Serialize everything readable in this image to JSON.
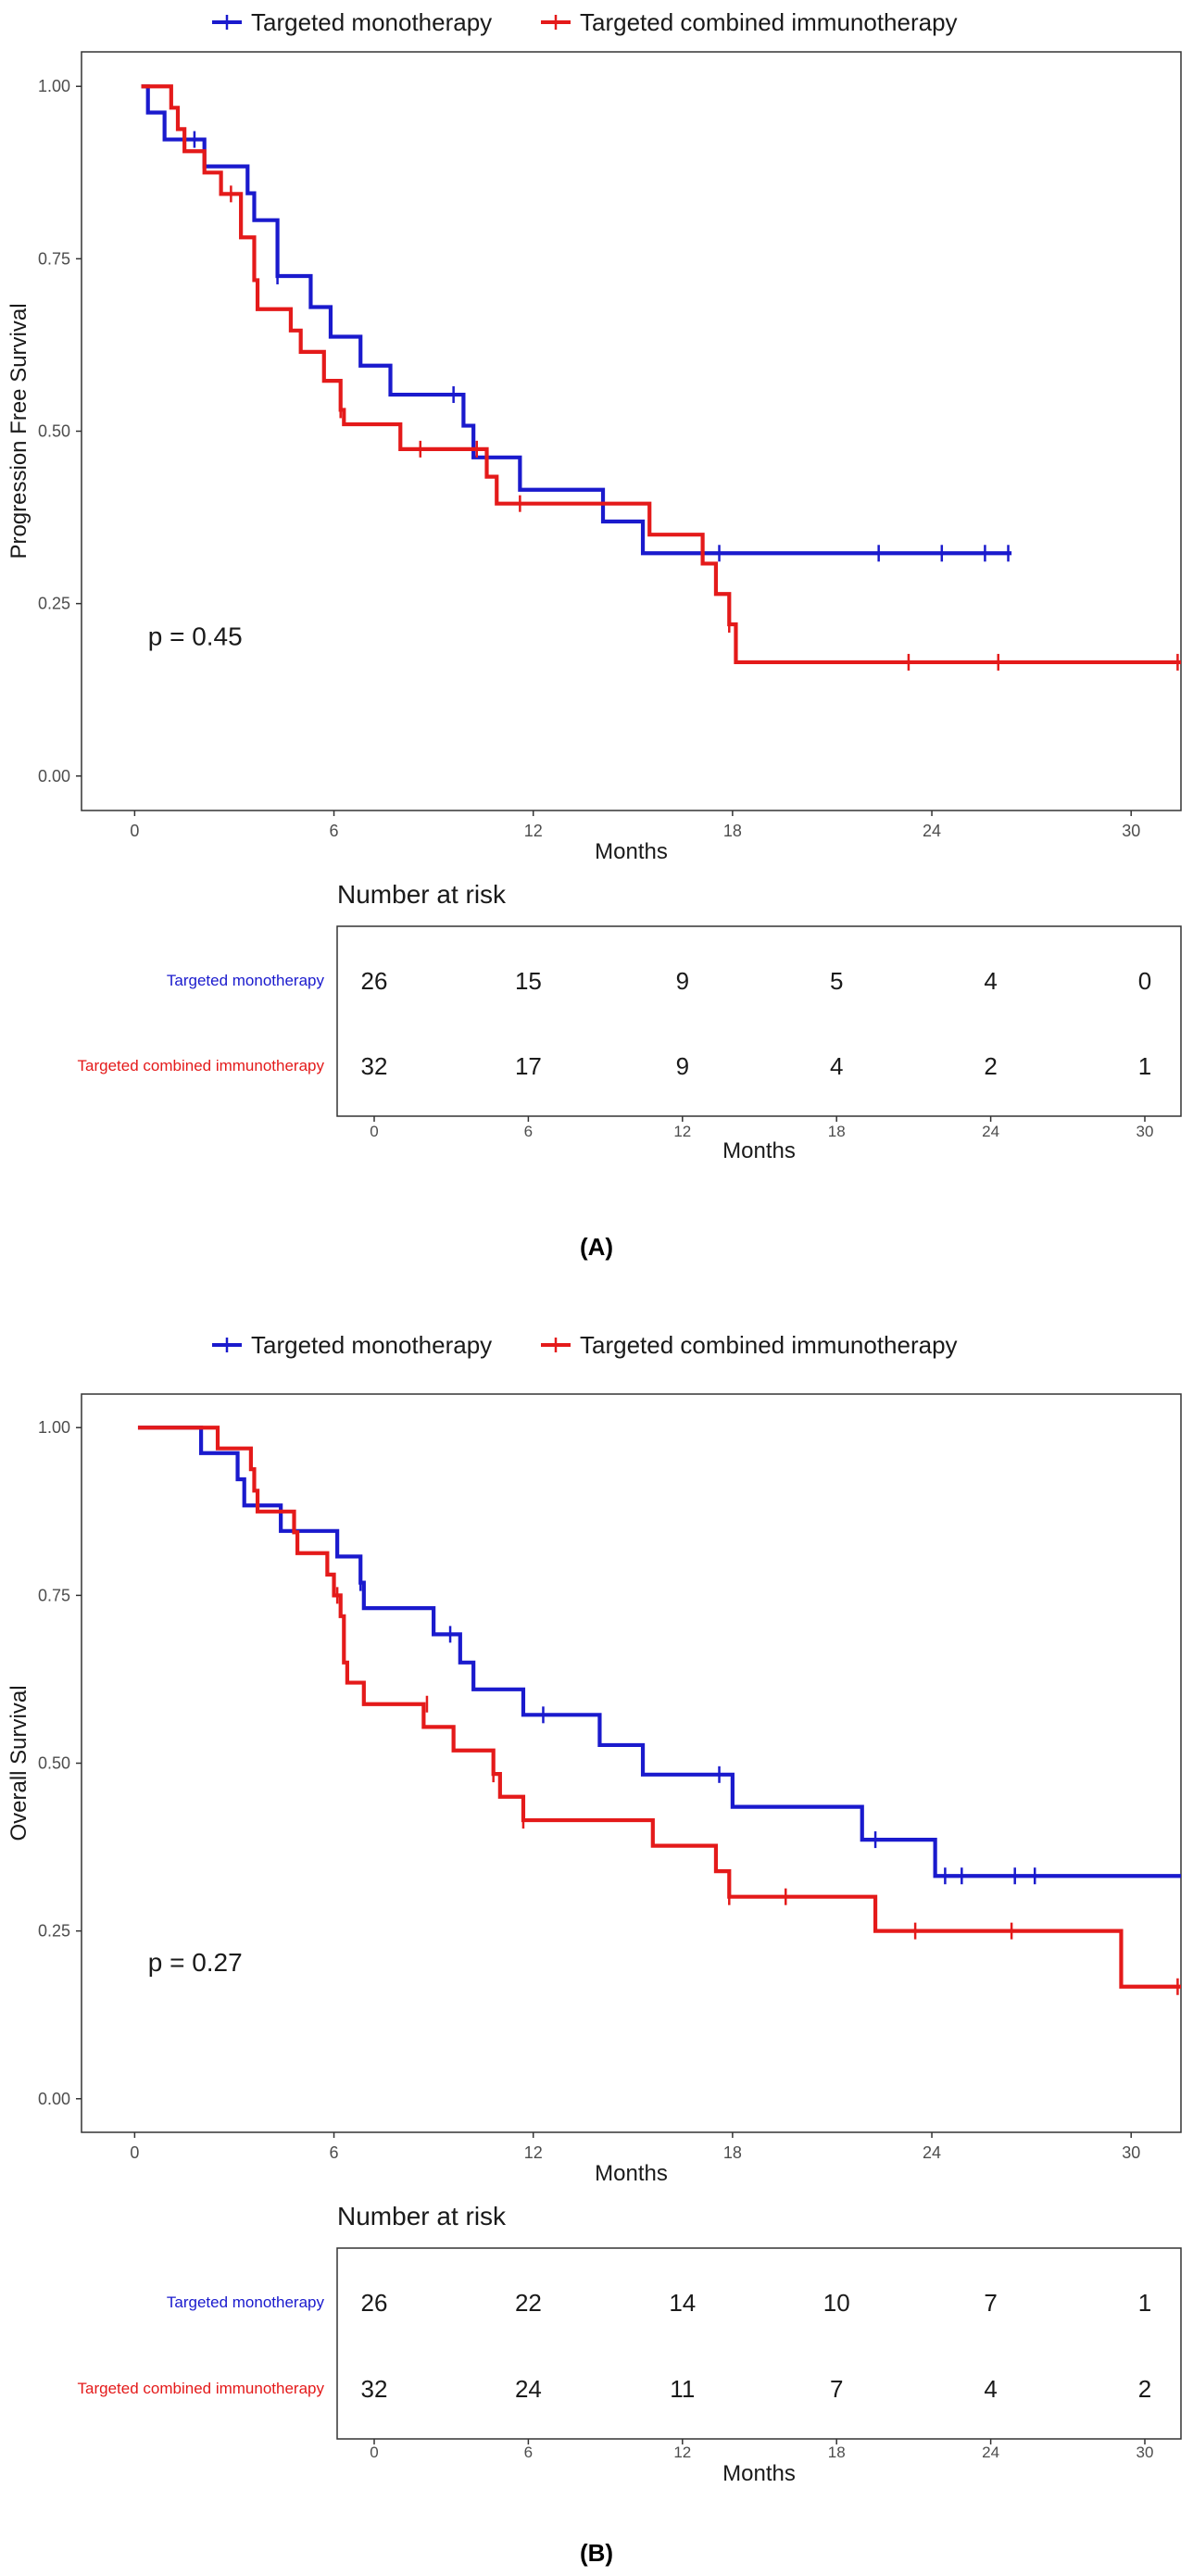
{
  "chart_data": [
    {
      "type": "line",
      "subtype": "kaplan-meier",
      "caption": "(A)",
      "xlabel": "Months",
      "ylabel": "Progression Free Survival",
      "xlim": [
        -1.6,
        31.5
      ],
      "ylim": [
        -0.05,
        1.05
      ],
      "xticks": [
        0,
        6,
        12,
        18,
        24,
        30
      ],
      "yticks": [
        0.0,
        0.25,
        0.5,
        0.75,
        1.0
      ],
      "ytick_labels": [
        "0.00",
        "0.25",
        "0.50",
        "0.75",
        "1.00"
      ],
      "grid": false,
      "legend_position": "top",
      "pvalue": "p = 0.45",
      "series": [
        {
          "name": "Targeted monotherapy",
          "color": "#1a1acd",
          "steps": [
            [
              0.2,
              1.0
            ],
            [
              0.4,
              0.962
            ],
            [
              0.9,
              0.923
            ],
            [
              2.1,
              0.884
            ],
            [
              3.4,
              0.845
            ],
            [
              3.6,
              0.806
            ],
            [
              4.3,
              0.725
            ],
            [
              5.3,
              0.68
            ],
            [
              5.9,
              0.637
            ],
            [
              6.8,
              0.595
            ],
            [
              7.7,
              0.553
            ],
            [
              9.9,
              0.508
            ],
            [
              10.2,
              0.462
            ],
            [
              11.6,
              0.415
            ],
            [
              14.1,
              0.369
            ],
            [
              15.3,
              0.323
            ],
            [
              26.4,
              0.323
            ]
          ],
          "censored": [
            [
              1.8,
              0.923
            ],
            [
              4.3,
              0.725
            ],
            [
              9.6,
              0.553
            ],
            [
              17.6,
              0.323
            ],
            [
              22.4,
              0.323
            ],
            [
              24.3,
              0.323
            ],
            [
              25.6,
              0.323
            ],
            [
              26.3,
              0.323
            ]
          ]
        },
        {
          "name": "Targeted combined immunotherapy",
          "color": "#e41a1a",
          "steps": [
            [
              0.2,
              1.0
            ],
            [
              1.1,
              0.969
            ],
            [
              1.3,
              0.938
            ],
            [
              1.5,
              0.906
            ],
            [
              2.1,
              0.875
            ],
            [
              2.6,
              0.844
            ],
            [
              3.2,
              0.781
            ],
            [
              3.6,
              0.719
            ],
            [
              3.7,
              0.677
            ],
            [
              4.7,
              0.646
            ],
            [
              5.0,
              0.615
            ],
            [
              5.7,
              0.573
            ],
            [
              6.2,
              0.531
            ],
            [
              6.3,
              0.51
            ],
            [
              8.0,
              0.474
            ],
            [
              10.6,
              0.434
            ],
            [
              10.9,
              0.395
            ],
            [
              15.5,
              0.35
            ],
            [
              17.1,
              0.308
            ],
            [
              17.5,
              0.264
            ],
            [
              17.9,
              0.22
            ],
            [
              18.1,
              0.165
            ],
            [
              31.5,
              0.165
            ]
          ],
          "censored": [
            [
              2.9,
              0.844
            ],
            [
              6.2,
              0.531
            ],
            [
              8.6,
              0.474
            ],
            [
              10.3,
              0.474
            ],
            [
              11.6,
              0.395
            ],
            [
              17.9,
              0.22
            ],
            [
              23.3,
              0.165
            ],
            [
              26.0,
              0.165
            ],
            [
              31.4,
              0.165
            ]
          ]
        }
      ],
      "risk_table": {
        "title": "Number at risk",
        "xlabel": "Months",
        "times": [
          0,
          6,
          12,
          18,
          24,
          30
        ],
        "rows": [
          {
            "label": "Targeted monotherapy",
            "color": "#1a1acd",
            "values": [
              "26",
              "15",
              "9",
              "5",
              "4",
              "0"
            ]
          },
          {
            "label": "Targeted combined immunotherapy",
            "color": "#e41a1a",
            "values": [
              "32",
              "17",
              "9",
              "4",
              "2",
              "1"
            ]
          }
        ]
      }
    },
    {
      "type": "line",
      "subtype": "kaplan-meier",
      "caption": "(B)",
      "xlabel": "Months",
      "ylabel": "Overall Survival",
      "xlim": [
        -1.6,
        31.5
      ],
      "ylim": [
        -0.05,
        1.05
      ],
      "xticks": [
        0,
        6,
        12,
        18,
        24,
        30
      ],
      "yticks": [
        0.0,
        0.25,
        0.5,
        0.75,
        1.0
      ],
      "ytick_labels": [
        "0.00",
        "0.25",
        "0.50",
        "0.75",
        "1.00"
      ],
      "grid": false,
      "legend_position": "top",
      "pvalue": "p = 0.27",
      "series": [
        {
          "name": "Targeted monotherapy",
          "color": "#1a1acd",
          "steps": [
            [
              0.1,
              1.0
            ],
            [
              2.0,
              0.962
            ],
            [
              3.1,
              0.923
            ],
            [
              3.3,
              0.884
            ],
            [
              4.4,
              0.846
            ],
            [
              6.1,
              0.808
            ],
            [
              6.8,
              0.769
            ],
            [
              6.9,
              0.731
            ],
            [
              9.0,
              0.692
            ],
            [
              9.8,
              0.65
            ],
            [
              10.2,
              0.61
            ],
            [
              11.7,
              0.572
            ],
            [
              14.0,
              0.527
            ],
            [
              15.3,
              0.483
            ],
            [
              18.0,
              0.435
            ],
            [
              21.9,
              0.386
            ],
            [
              24.1,
              0.332
            ],
            [
              31.5,
              0.332
            ]
          ],
          "censored": [
            [
              6.8,
              0.769
            ],
            [
              9.5,
              0.692
            ],
            [
              12.3,
              0.572
            ],
            [
              17.6,
              0.483
            ],
            [
              22.3,
              0.386
            ],
            [
              24.4,
              0.332
            ],
            [
              24.9,
              0.332
            ],
            [
              26.5,
              0.332
            ],
            [
              27.1,
              0.332
            ]
          ]
        },
        {
          "name": "Targeted combined immunotherapy",
          "color": "#e41a1a",
          "steps": [
            [
              0.1,
              1.0
            ],
            [
              2.5,
              0.969
            ],
            [
              3.5,
              0.938
            ],
            [
              3.6,
              0.906
            ],
            [
              3.7,
              0.875
            ],
            [
              4.8,
              0.844
            ],
            [
              4.9,
              0.813
            ],
            [
              5.8,
              0.781
            ],
            [
              6.0,
              0.75
            ],
            [
              6.2,
              0.719
            ],
            [
              6.3,
              0.65
            ],
            [
              6.4,
              0.62
            ],
            [
              6.9,
              0.588
            ],
            [
              8.7,
              0.554
            ],
            [
              9.6,
              0.519
            ],
            [
              10.8,
              0.484
            ],
            [
              11.0,
              0.45
            ],
            [
              11.7,
              0.415
            ],
            [
              15.6,
              0.377
            ],
            [
              17.5,
              0.339
            ],
            [
              17.9,
              0.301
            ],
            [
              22.3,
              0.25
            ],
            [
              29.7,
              0.167
            ],
            [
              31.5,
              0.167
            ]
          ],
          "censored": [
            [
              6.1,
              0.75
            ],
            [
              8.8,
              0.588
            ],
            [
              10.8,
              0.484
            ],
            [
              11.7,
              0.415
            ],
            [
              17.9,
              0.301
            ],
            [
              19.6,
              0.301
            ],
            [
              23.5,
              0.25
            ],
            [
              26.4,
              0.25
            ],
            [
              31.4,
              0.167
            ]
          ]
        }
      ],
      "risk_table": {
        "title": "Number at risk",
        "xlabel": "Months",
        "times": [
          0,
          6,
          12,
          18,
          24,
          30
        ],
        "rows": [
          {
            "label": "Targeted monotherapy",
            "color": "#1a1acd",
            "values": [
              "26",
              "22",
              "14",
              "10",
              "7",
              "1"
            ]
          },
          {
            "label": "Targeted combined immunotherapy",
            "color": "#e41a1a",
            "values": [
              "32",
              "24",
              "11",
              "7",
              "4",
              "2"
            ]
          }
        ]
      }
    }
  ]
}
